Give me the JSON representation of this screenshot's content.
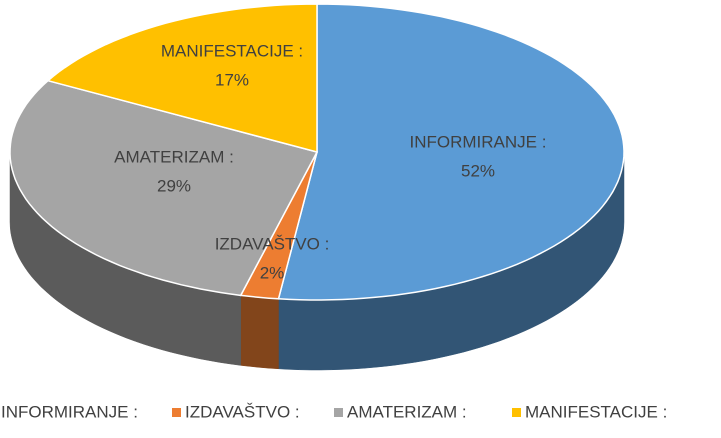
{
  "chart_data": {
    "type": "pie",
    "categories": [
      "INFORMIRANJE :",
      "IZDAVAŠTVO :",
      "AMATERIZAM :",
      "MANIFESTACIJE :"
    ],
    "values": [
      52,
      2,
      29,
      17
    ],
    "value_labels": [
      "52%",
      "2%",
      "29%",
      "17%"
    ],
    "colors": [
      "#5b9bd5",
      "#ed7d31",
      "#a5a5a5",
      "#ffc000"
    ],
    "legend": "bottom"
  }
}
